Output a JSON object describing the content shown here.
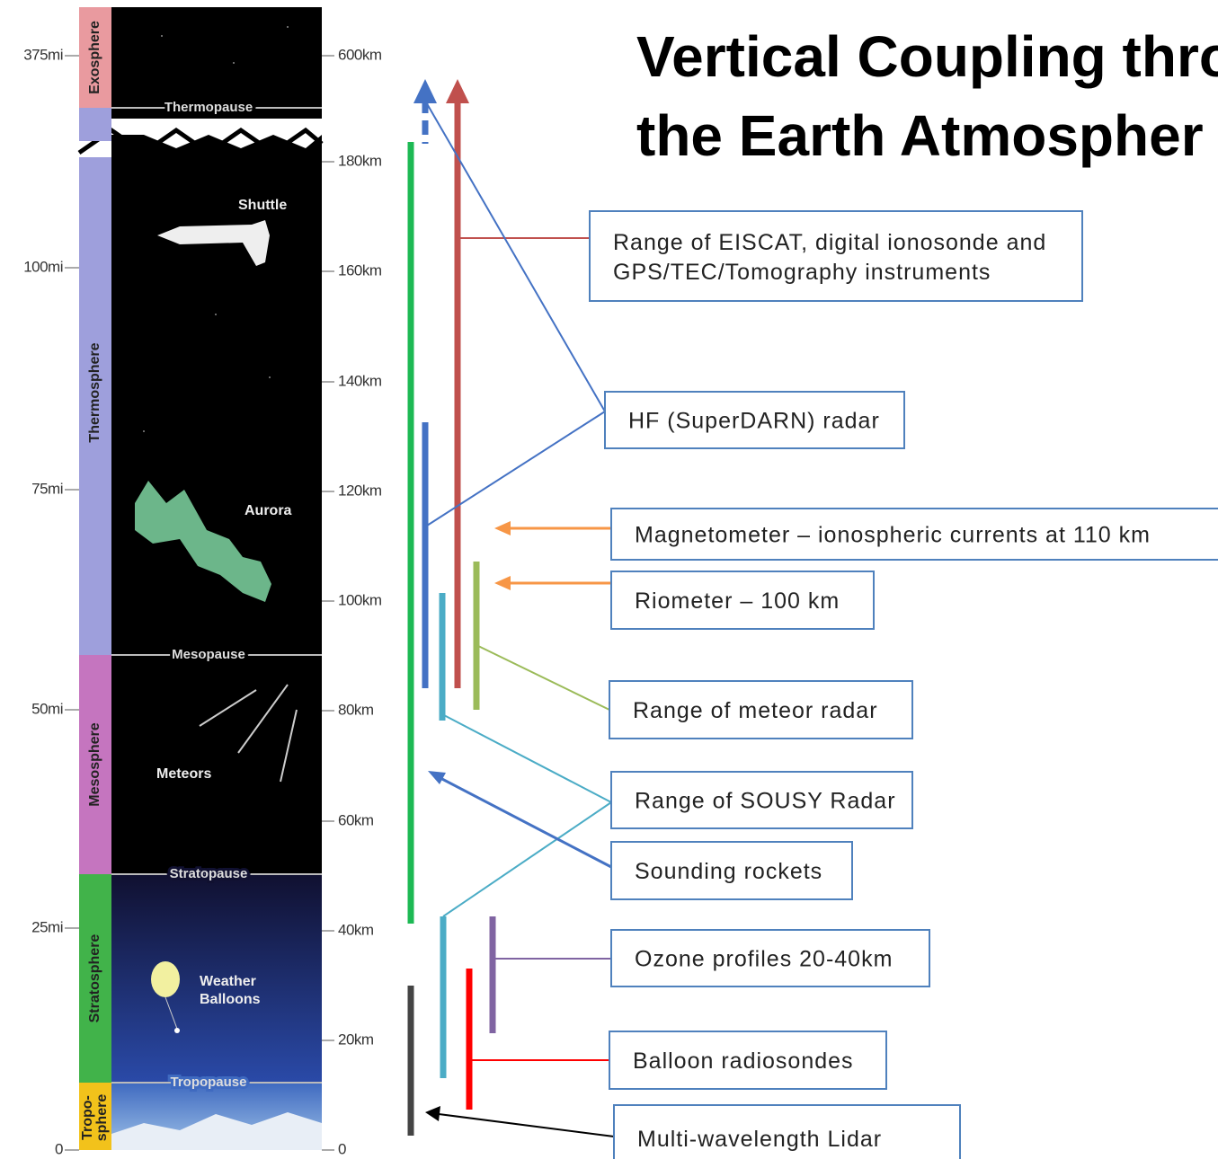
{
  "title": {
    "lines": [
      "Vertical Coupling thro",
      "the  Earth Atmospher"
    ]
  },
  "mile_axis": [
    "375mi",
    "100mi",
    "75mi",
    "50mi",
    "25mi",
    "0"
  ],
  "km_axis": [
    "600km",
    "180km",
    "160km",
    "140km",
    "120km",
    "100km",
    "80km",
    "60km",
    "40km",
    "20km",
    "0"
  ],
  "layers": [
    "Exosphere",
    "Thermosphere",
    "Mesosphere",
    "Stratosphere"
  ],
  "troposphere": [
    "Tropo-",
    "sphere"
  ],
  "boundaries": [
    "Thermopause",
    "Mesopause",
    "Stratopause",
    "Tropopause"
  ],
  "objects": {
    "shuttle": "Shuttle",
    "aurora": "Aurora",
    "meteors": "Meteors",
    "balloons": [
      "Weather",
      "Balloons"
    ]
  },
  "instruments": [
    [
      "Range of EISCAT, digital ionosonde and",
      "GPS/TEC/Tomography  instruments"
    ],
    [
      "HF (SuperDARN)  radar"
    ],
    [
      "Magnetometer  – ionospheric currents at 110 km"
    ],
    [
      "Riometer – 100 km"
    ],
    [
      "Range  of meteor  radar"
    ],
    [
      "Range  of SOUSY Radar"
    ],
    [
      "Sounding rockets"
    ],
    [
      "Ozone  profiles 20-40km"
    ],
    [
      "Balloon radiosondes"
    ],
    [
      "Multi-wavelength Lidar"
    ]
  ]
}
